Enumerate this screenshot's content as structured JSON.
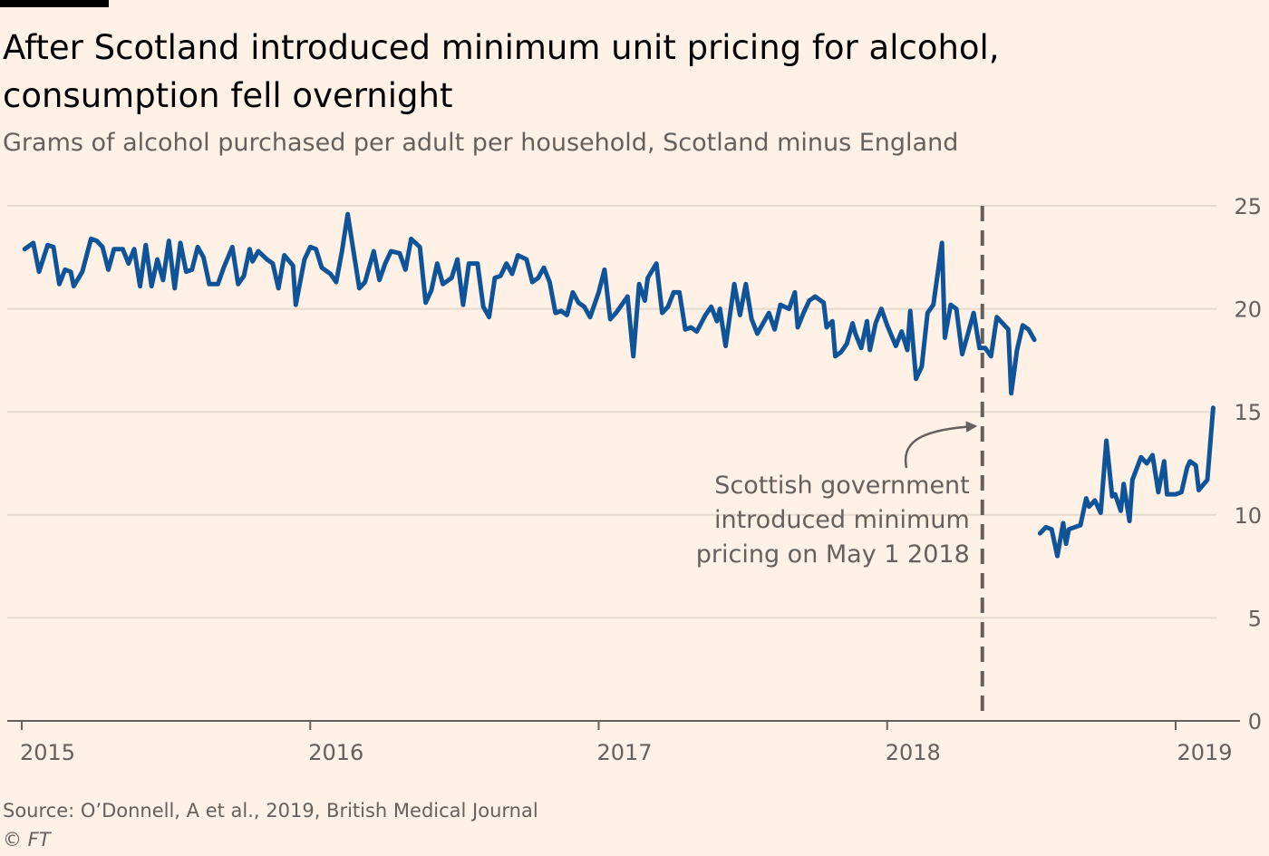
{
  "title": "After Scotland introduced minimum unit pricing for alcohol, consumption fell overnight",
  "subtitle": "Grams of alcohol purchased per adult per household, Scotland minus England",
  "source": "Source: O’Donnell, A et al., 2019, British Medical Journal",
  "credit": "© FT",
  "colors": {
    "background": "#FFF1E5",
    "line": "#0F5499",
    "grid": "#E6D9CE",
    "text": "#66605C",
    "marker": "#66605C"
  },
  "chart_data": {
    "type": "line",
    "title": "After Scotland introduced minimum unit pricing for alcohol, consumption fell overnight",
    "subtitle": "Grams of alcohol purchased per adult per household, Scotland minus England",
    "xlim": [
      2015,
      2019.2
    ],
    "ylim": [
      0,
      25
    ],
    "x_ticks": [
      2015,
      2016,
      2017,
      2018,
      2019
    ],
    "x_tick_labels": [
      "2015",
      "2016",
      "2017",
      "2018",
      "2019"
    ],
    "y_ticks": [
      0,
      5,
      10,
      15,
      20,
      25
    ],
    "y_tick_labels": [
      "0",
      "5",
      "10",
      "15",
      "20",
      "25"
    ],
    "grid": "horizontal",
    "y_axis_position": "right",
    "marker": {
      "x": 2018.33,
      "label_lines": [
        "Scottish government",
        "introduced minimum",
        "pricing on May 1 2018"
      ]
    },
    "series": [
      {
        "segments": [
          [
            [
              2015.01,
              22.9
            ],
            [
              2015.04,
              23.2
            ],
            [
              2015.06,
              21.8
            ],
            [
              2015.09,
              23.1
            ],
            [
              2015.11,
              23.0
            ],
            [
              2015.13,
              21.2
            ],
            [
              2015.15,
              21.9
            ],
            [
              2015.17,
              21.8
            ],
            [
              2015.18,
              21.1
            ],
            [
              2015.21,
              21.8
            ],
            [
              2015.24,
              23.4
            ],
            [
              2015.26,
              23.3
            ],
            [
              2015.28,
              23.0
            ],
            [
              2015.3,
              21.9
            ],
            [
              2015.32,
              22.9
            ],
            [
              2015.35,
              22.9
            ],
            [
              2015.37,
              22.2
            ],
            [
              2015.39,
              22.9
            ],
            [
              2015.41,
              21.1
            ],
            [
              2015.43,
              23.1
            ],
            [
              2015.45,
              21.1
            ],
            [
              2015.47,
              22.4
            ],
            [
              2015.49,
              21.4
            ],
            [
              2015.51,
              23.3
            ],
            [
              2015.53,
              21.0
            ],
            [
              2015.55,
              23.2
            ],
            [
              2015.57,
              21.8
            ],
            [
              2015.59,
              21.9
            ],
            [
              2015.61,
              23.0
            ],
            [
              2015.63,
              22.5
            ],
            [
              2015.65,
              21.2
            ],
            [
              2015.68,
              21.2
            ],
            [
              2015.7,
              22.0
            ],
            [
              2015.73,
              23.0
            ],
            [
              2015.75,
              21.2
            ],
            [
              2015.77,
              21.6
            ],
            [
              2015.79,
              22.9
            ],
            [
              2015.8,
              22.3
            ],
            [
              2015.82,
              22.8
            ],
            [
              2015.85,
              22.4
            ],
            [
              2015.87,
              22.2
            ],
            [
              2015.89,
              21.0
            ],
            [
              2015.91,
              22.6
            ],
            [
              2015.94,
              22.1
            ],
            [
              2015.95,
              20.2
            ],
            [
              2015.98,
              22.4
            ],
            [
              2016.0,
              23.0
            ],
            [
              2016.02,
              22.9
            ],
            [
              2016.04,
              22.0
            ],
            [
              2016.07,
              21.7
            ],
            [
              2016.09,
              21.3
            ],
            [
              2016.11,
              22.8
            ],
            [
              2016.13,
              24.6
            ],
            [
              2016.15,
              22.8
            ],
            [
              2016.17,
              21.0
            ],
            [
              2016.19,
              21.3
            ],
            [
              2016.22,
              22.8
            ],
            [
              2016.24,
              21.4
            ],
            [
              2016.26,
              22.2
            ],
            [
              2016.28,
              22.8
            ],
            [
              2016.31,
              22.7
            ],
            [
              2016.33,
              21.9
            ],
            [
              2016.35,
              23.4
            ],
            [
              2016.38,
              23.0
            ],
            [
              2016.4,
              20.3
            ],
            [
              2016.42,
              20.9
            ],
            [
              2016.44,
              22.2
            ],
            [
              2016.46,
              21.2
            ],
            [
              2016.49,
              21.5
            ],
            [
              2016.51,
              22.4
            ],
            [
              2016.53,
              20.2
            ],
            [
              2016.55,
              22.2
            ],
            [
              2016.58,
              22.2
            ],
            [
              2016.6,
              20.1
            ],
            [
              2016.62,
              19.6
            ],
            [
              2016.64,
              21.5
            ],
            [
              2016.66,
              21.6
            ],
            [
              2016.68,
              22.2
            ],
            [
              2016.7,
              21.7
            ],
            [
              2016.72,
              22.6
            ],
            [
              2016.75,
              22.4
            ],
            [
              2016.77,
              21.3
            ],
            [
              2016.79,
              21.5
            ],
            [
              2016.81,
              22.0
            ],
            [
              2016.83,
              21.3
            ],
            [
              2016.85,
              19.8
            ],
            [
              2016.87,
              19.9
            ],
            [
              2016.89,
              19.7
            ],
            [
              2016.91,
              20.8
            ],
            [
              2016.93,
              20.3
            ],
            [
              2016.95,
              20.1
            ],
            [
              2016.97,
              19.6
            ],
            [
              2017.0,
              20.8
            ],
            [
              2017.02,
              21.9
            ],
            [
              2017.04,
              19.5
            ],
            [
              2017.06,
              19.8
            ],
            [
              2017.08,
              20.2
            ],
            [
              2017.1,
              20.6
            ],
            [
              2017.12,
              17.7
            ],
            [
              2017.14,
              21.2
            ],
            [
              2017.16,
              20.4
            ],
            [
              2017.17,
              21.5
            ],
            [
              2017.2,
              22.2
            ],
            [
              2017.22,
              19.8
            ],
            [
              2017.24,
              20.1
            ],
            [
              2017.26,
              20.8
            ],
            [
              2017.28,
              20.8
            ],
            [
              2017.3,
              19.0
            ],
            [
              2017.32,
              19.1
            ],
            [
              2017.34,
              18.9
            ],
            [
              2017.37,
              19.7
            ],
            [
              2017.39,
              20.1
            ],
            [
              2017.41,
              19.4
            ],
            [
              2017.42,
              20.0
            ],
            [
              2017.44,
              18.2
            ],
            [
              2017.47,
              21.2
            ],
            [
              2017.49,
              19.7
            ],
            [
              2017.51,
              21.2
            ],
            [
              2017.53,
              19.5
            ],
            [
              2017.55,
              18.8
            ],
            [
              2017.57,
              19.3
            ],
            [
              2017.59,
              19.8
            ],
            [
              2017.61,
              19.0
            ],
            [
              2017.63,
              20.2
            ],
            [
              2017.66,
              20.0
            ],
            [
              2017.68,
              20.8
            ],
            [
              2017.69,
              19.1
            ],
            [
              2017.71,
              19.8
            ],
            [
              2017.73,
              20.4
            ],
            [
              2017.75,
              20.6
            ],
            [
              2017.78,
              20.3
            ],
            [
              2017.79,
              19.1
            ],
            [
              2017.81,
              19.4
            ],
            [
              2017.82,
              17.7
            ],
            [
              2017.84,
              17.9
            ],
            [
              2017.86,
              18.3
            ],
            [
              2017.88,
              19.3
            ],
            [
              2017.89,
              18.8
            ],
            [
              2017.91,
              18.1
            ],
            [
              2017.93,
              19.4
            ],
            [
              2017.94,
              18.0
            ],
            [
              2017.96,
              19.3
            ],
            [
              2017.98,
              20.0
            ],
            [
              2018.0,
              19.2
            ],
            [
              2018.03,
              18.2
            ],
            [
              2018.05,
              18.9
            ],
            [
              2018.07,
              18.0
            ],
            [
              2018.08,
              19.9
            ],
            [
              2018.1,
              16.6
            ],
            [
              2018.12,
              17.2
            ],
            [
              2018.14,
              19.8
            ],
            [
              2018.16,
              20.2
            ],
            [
              2018.19,
              23.2
            ],
            [
              2018.2,
              18.6
            ],
            [
              2018.22,
              20.2
            ],
            [
              2018.24,
              20.0
            ],
            [
              2018.26,
              17.8
            ],
            [
              2018.28,
              18.8
            ],
            [
              2018.3,
              19.8
            ],
            [
              2018.32,
              18.1
            ],
            [
              2018.34,
              18.1
            ],
            [
              2018.36,
              17.7
            ],
            [
              2018.38,
              19.6
            ],
            [
              2018.4,
              19.3
            ],
            [
              2018.42,
              19.0
            ],
            [
              2018.43,
              15.9
            ],
            [
              2018.45,
              18.0
            ],
            [
              2018.47,
              19.2
            ],
            [
              2018.49,
              19.0
            ],
            [
              2018.51,
              18.5
            ]
          ],
          [
            [
              2018.53,
              9.1
            ],
            [
              2018.55,
              9.4
            ],
            [
              2018.57,
              9.3
            ],
            [
              2018.59,
              8.0
            ],
            [
              2018.61,
              9.6
            ],
            [
              2018.62,
              8.6
            ],
            [
              2018.63,
              9.3
            ],
            [
              2018.67,
              9.5
            ],
            [
              2018.69,
              10.8
            ],
            [
              2018.7,
              10.4
            ],
            [
              2018.72,
              10.7
            ],
            [
              2018.74,
              10.1
            ],
            [
              2018.76,
              13.6
            ],
            [
              2018.78,
              10.9
            ],
            [
              2018.79,
              11.0
            ],
            [
              2018.81,
              10.2
            ],
            [
              2018.82,
              11.5
            ],
            [
              2018.84,
              9.7
            ],
            [
              2018.85,
              11.7
            ],
            [
              2018.88,
              12.8
            ],
            [
              2018.9,
              12.5
            ],
            [
              2018.92,
              12.9
            ],
            [
              2018.94,
              11.1
            ],
            [
              2018.96,
              12.6
            ],
            [
              2018.97,
              11.0
            ],
            [
              2019.0,
              11.0
            ],
            [
              2019.02,
              11.1
            ],
            [
              2019.04,
              12.3
            ],
            [
              2019.05,
              12.6
            ],
            [
              2019.07,
              12.4
            ],
            [
              2019.08,
              11.2
            ],
            [
              2019.11,
              11.7
            ],
            [
              2019.13,
              15.2
            ]
          ]
        ]
      }
    ]
  }
}
